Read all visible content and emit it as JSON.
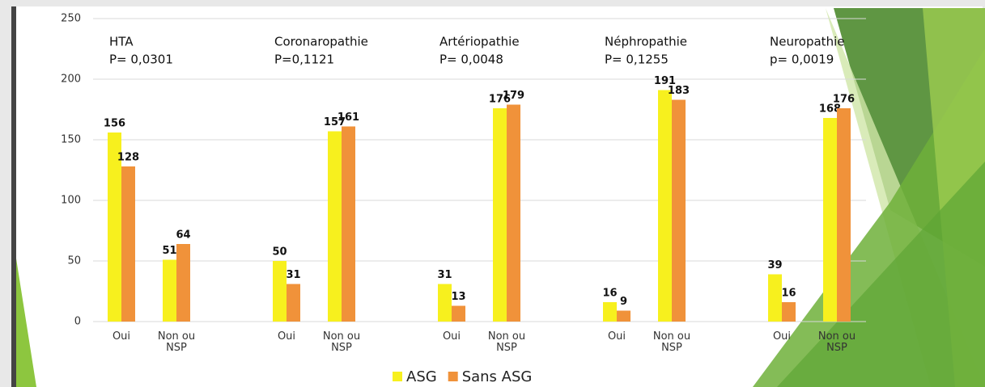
{
  "chart_data": {
    "type": "bar",
    "categories": [
      "Oui",
      "Non ou\nNSP",
      "Oui",
      "Non ou\nNSP",
      "Oui",
      "Non ou\nNSP",
      "Oui",
      "Non ou\nNSP",
      "Oui",
      "Non ou\nNSP"
    ],
    "groups": [
      {
        "label": "HTA",
        "p": "P= 0,0301"
      },
      {
        "label": "Coronaropathie",
        "p": "P=0,1121"
      },
      {
        "label": "Artériopathie",
        "p": "P= 0,0048"
      },
      {
        "label": "Néphropathie",
        "p": "P= 0,1255"
      },
      {
        "label": "Neuropathie",
        "p": "p= 0,0019"
      }
    ],
    "series": [
      {
        "name": "ASG",
        "color": "#f7f01e",
        "values": [
          156,
          51,
          50,
          157,
          31,
          176,
          16,
          191,
          39,
          168
        ]
      },
      {
        "name": "Sans ASG",
        "color": "#f0923a",
        "values": [
          128,
          64,
          31,
          161,
          13,
          179,
          9,
          183,
          16,
          176
        ]
      }
    ],
    "ylim": [
      0,
      250
    ],
    "yticks": [
      0,
      50,
      100,
      150,
      200,
      250
    ],
    "grid": true,
    "legend": "bottom"
  }
}
